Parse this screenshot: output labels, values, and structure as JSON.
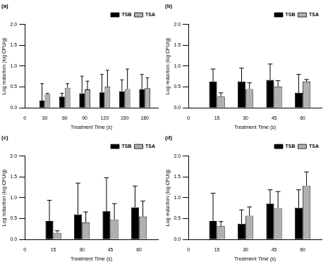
{
  "chart_data": [
    {
      "type": "bar",
      "title": "(a)",
      "x_label": "Treatment Time (s)",
      "y_label": "Log reduction (log CFU/g)",
      "xlim": [
        0,
        200
      ],
      "xticks": [
        0,
        30,
        60,
        90,
        120,
        150,
        180
      ],
      "ylim": [
        0,
        2
      ],
      "yticks": [
        {
          "value": 0,
          "label": "0.0"
        },
        {
          "value": 0.5,
          "label": "0.5"
        },
        {
          "value": 1,
          "label": "1.0"
        },
        {
          "value": 1.5,
          "label": "1.5"
        },
        {
          "value": 2,
          "label": "2.0"
        }
      ],
      "grid": false,
      "legend": "upper right",
      "series": [
        {
          "name": "TSB",
          "color": "#000000",
          "x": [
            30,
            60,
            90,
            120,
            150,
            180
          ],
          "values": [
            0.17,
            0.27,
            0.35,
            0.37,
            0.4,
            0.45
          ],
          "errors": [
            0.41,
            0.08,
            0.41,
            0.43,
            0.27,
            0.35
          ]
        },
        {
          "name": "TSA",
          "color": "#b0b0b0",
          "x": [
            30,
            60,
            90,
            120,
            150,
            180
          ],
          "values": [
            0.33,
            0.48,
            0.44,
            0.51,
            0.45,
            0.47
          ],
          "errors": [
            0.02,
            0.1,
            0.2,
            0.39,
            0.48,
            0.25
          ]
        }
      ]
    },
    {
      "type": "bar",
      "title": "(b)",
      "x_label": "Treatment Time (s)",
      "y_label": "Log reduction (log CFU/g)",
      "xlim": [
        0,
        70
      ],
      "xticks": [
        0,
        15,
        30,
        45,
        60
      ],
      "ylim": [
        0,
        2
      ],
      "yticks": [
        {
          "value": 0,
          "label": "0.0"
        },
        {
          "value": 0.5,
          "label": "0.5"
        },
        {
          "value": 1,
          "label": "1.0"
        },
        {
          "value": 1.5,
          "label": "1.5"
        },
        {
          "value": 2,
          "label": "2.0"
        }
      ],
      "grid": false,
      "legend": "upper right",
      "series": [
        {
          "name": "TSB",
          "color": "#000000",
          "x": [
            15,
            30,
            45,
            60
          ],
          "values": [
            0.63,
            0.63,
            0.67,
            0.36
          ],
          "errors": [
            0.3,
            0.32,
            0.38,
            0.44
          ]
        },
        {
          "name": "TSA",
          "color": "#b0b0b0",
          "x": [
            15,
            30,
            45,
            60
          ],
          "values": [
            0.27,
            0.45,
            0.51,
            0.63
          ],
          "errors": [
            0.09,
            0.15,
            0.14,
            0.05
          ]
        }
      ]
    },
    {
      "type": "bar",
      "title": "(c)",
      "x_label": "Treatment Time (s)",
      "y_label": "Log reduction (log CFU/g)",
      "xlim": [
        0,
        70
      ],
      "xticks": [
        0,
        15,
        30,
        45,
        60
      ],
      "ylim": [
        0,
        2
      ],
      "yticks": [
        {
          "value": 0,
          "label": "0.0"
        },
        {
          "value": 0.5,
          "label": "0.5"
        },
        {
          "value": 1,
          "label": "1.0"
        },
        {
          "value": 1.5,
          "label": "1.5"
        },
        {
          "value": 2,
          "label": "2.0"
        }
      ],
      "grid": false,
      "legend": "upper right",
      "series": [
        {
          "name": "TSB",
          "color": "#000000",
          "x": [
            15,
            30,
            45,
            60
          ],
          "values": [
            0.44,
            0.6,
            0.68,
            0.77
          ],
          "errors": [
            0.5,
            0.75,
            0.8,
            0.51
          ]
        },
        {
          "name": "TSA",
          "color": "#b0b0b0",
          "x": [
            15,
            30,
            45,
            60
          ],
          "values": [
            0.16,
            0.41,
            0.48,
            0.55
          ],
          "errors": [
            0.05,
            0.25,
            0.38,
            0.37
          ]
        }
      ]
    },
    {
      "type": "bar",
      "title": "(d)",
      "x_label": "Treatment Time (s)",
      "y_label": "Log reduction (log CFU/g)",
      "xlim": [
        0,
        70
      ],
      "xticks": [
        0,
        15,
        30,
        45,
        60
      ],
      "ylim": [
        0,
        2
      ],
      "yticks": [
        {
          "value": 0,
          "label": "0.0"
        },
        {
          "value": 0.5,
          "label": "0.5"
        },
        {
          "value": 1,
          "label": "1.0"
        },
        {
          "value": 1.5,
          "label": "1.5"
        },
        {
          "value": 2,
          "label": "2.0"
        }
      ],
      "grid": false,
      "legend": "upper right",
      "series": [
        {
          "name": "TSB",
          "color": "#000000",
          "x": [
            15,
            30,
            45,
            60
          ],
          "values": [
            0.44,
            0.38,
            0.86,
            0.76
          ],
          "errors": [
            0.67,
            0.33,
            0.33,
            0.43
          ]
        },
        {
          "name": "TSA",
          "color": "#b0b0b0",
          "x": [
            15,
            30,
            45,
            60
          ],
          "values": [
            0.32,
            0.57,
            0.75,
            1.29
          ],
          "errors": [
            0.11,
            0.21,
            0.4,
            0.33
          ]
        }
      ]
    }
  ]
}
